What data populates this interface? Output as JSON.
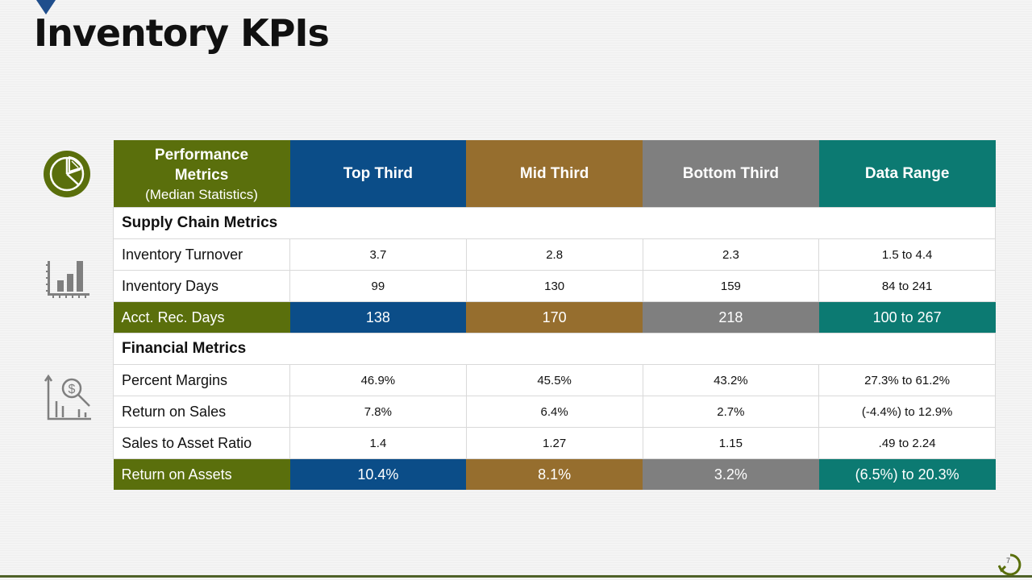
{
  "page": {
    "title": "Inventory KPIs",
    "page_number": "7"
  },
  "colors": {
    "olive": "#5a6f0c",
    "blue": "#0b4d88",
    "brown": "#966e2e",
    "gray": "#7f7f7f",
    "teal": "#0c7a72"
  },
  "icons": [
    "pie-chart-icon",
    "bar-chart-icon",
    "dollar-search-chart-icon",
    "refresh-logo-icon"
  ],
  "table": {
    "header": {
      "col1_line1": "Performance",
      "col1_line2": "Metrics",
      "col1_sub": "(Median Statistics)",
      "col2": "Top Third",
      "col3": "Mid Third",
      "col4": "Bottom Third",
      "col5": "Data Range"
    },
    "sections": {
      "supply": "Supply Chain Metrics",
      "financial": "Financial Metrics"
    },
    "rows": [
      {
        "label": "Inventory Turnover",
        "top": "3.7",
        "mid": "2.8",
        "bottom": "2.3",
        "range": "1.5 to 4.4"
      },
      {
        "label": "Inventory Days",
        "top": "99",
        "mid": "130",
        "bottom": "159",
        "range": "84 to 241"
      },
      {
        "label": "Acct. Rec. Days",
        "top": "138",
        "mid": "170",
        "bottom": "218",
        "range": "100 to 267"
      },
      {
        "label": "Percent Margins",
        "top": "46.9%",
        "mid": "45.5%",
        "bottom": "43.2%",
        "range": "27.3% to 61.2%"
      },
      {
        "label": "Return on Sales",
        "top": "7.8%",
        "mid": "6.4%",
        "bottom": "2.7%",
        "range": "(-4.4%) to 12.9%"
      },
      {
        "label": "Sales to Asset Ratio",
        "top": "1.4",
        "mid": "1.27",
        "bottom": "1.15",
        "range": ".49 to 2.24"
      },
      {
        "label": "Return on Assets",
        "top": "10.4%",
        "mid": "8.1%",
        "bottom": "3.2%",
        "range": "(6.5%) to 20.3%"
      }
    ]
  }
}
